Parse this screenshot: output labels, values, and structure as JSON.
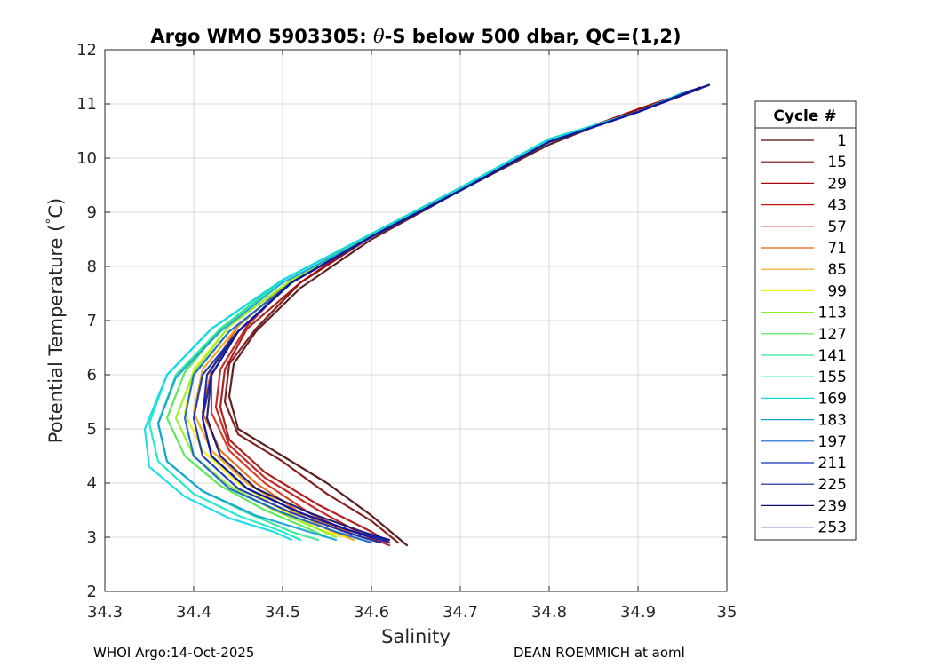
{
  "chart_data": {
    "type": "line",
    "title_prefix": "Argo WMO 5903305: ",
    "title_theta": "θ",
    "title_suffix": "-S below 500 dbar,  QC=(1,2)",
    "xlabel": "Salinity",
    "ylabel_main": "Potential Temperature (",
    "ylabel_deg": "°",
    "ylabel_end": "C)",
    "xlim": [
      34.3,
      35
    ],
    "ylim": [
      2,
      12
    ],
    "x_ticks": [
      34.3,
      34.4,
      34.5,
      34.6,
      34.7,
      34.8,
      34.9,
      35
    ],
    "x_tick_labels": [
      "34.3",
      "34.4",
      "34.5",
      "34.6",
      "34.7",
      "34.8",
      "34.9",
      "35"
    ],
    "y_ticks": [
      2,
      3,
      4,
      5,
      6,
      7,
      8,
      9,
      10,
      11,
      12
    ],
    "y_tick_labels": [
      "2",
      "3",
      "4",
      "5",
      "6",
      "7",
      "8",
      "9",
      "10",
      "11",
      "12"
    ],
    "grid": true,
    "legend": {
      "title": "Cycle #",
      "position": "right-outside",
      "entries": [
        {
          "label": "1",
          "color": "#4d0a0a"
        },
        {
          "label": "15",
          "color": "#7a0a0a"
        },
        {
          "label": "29",
          "color": "#a50a0a"
        },
        {
          "label": "43",
          "color": "#c01515"
        },
        {
          "label": "57",
          "color": "#d22a12"
        },
        {
          "label": "71",
          "color": "#e06010"
        },
        {
          "label": "85",
          "color": "#f0a010"
        },
        {
          "label": "99",
          "color": "#f5f010"
        },
        {
          "label": "113",
          "color": "#90ef20"
        },
        {
          "label": "127",
          "color": "#4ae84a"
        },
        {
          "label": "141",
          "color": "#2ae890"
        },
        {
          "label": "155",
          "color": "#10e8c0"
        },
        {
          "label": "169",
          "color": "#10d8e8"
        },
        {
          "label": "183",
          "color": "#10a0d8"
        },
        {
          "label": "197",
          "color": "#1060c8"
        },
        {
          "label": "211",
          "color": "#1030b0"
        },
        {
          "label": "225",
          "color": "#101890"
        },
        {
          "label": "239",
          "color": "#10106a"
        },
        {
          "label": "253",
          "color": "#0a1aa8"
        }
      ]
    },
    "series": [
      {
        "name": "1",
        "x": [
          34.98,
          34.9,
          34.8,
          34.7,
          34.6,
          34.52,
          34.47,
          34.445,
          34.44,
          34.45,
          34.5,
          34.55,
          34.6,
          34.64
        ],
        "y": [
          11.35,
          10.9,
          10.25,
          9.4,
          8.5,
          7.6,
          6.8,
          6.2,
          5.6,
          5.0,
          4.5,
          4.0,
          3.4,
          2.85
        ]
      },
      {
        "name": "15",
        "x": [
          34.97,
          34.9,
          34.8,
          34.7,
          34.6,
          34.52,
          34.47,
          34.44,
          34.435,
          34.45,
          34.5,
          34.55,
          34.6,
          34.63
        ],
        "y": [
          11.3,
          10.9,
          10.3,
          9.45,
          8.55,
          7.7,
          6.85,
          6.2,
          5.5,
          4.9,
          4.4,
          3.8,
          3.3,
          2.9
        ]
      },
      {
        "name": "29",
        "x": [
          34.97,
          34.9,
          34.8,
          34.7,
          34.6,
          34.52,
          34.46,
          34.435,
          34.43,
          34.44,
          34.48,
          34.54,
          34.6,
          34.62
        ],
        "y": [
          11.3,
          10.9,
          10.3,
          9.45,
          8.6,
          7.7,
          6.85,
          6.1,
          5.4,
          4.8,
          4.2,
          3.6,
          3.1,
          2.9
        ]
      },
      {
        "name": "43",
        "x": [
          34.97,
          34.9,
          34.8,
          34.7,
          34.6,
          34.51,
          34.46,
          34.43,
          34.425,
          34.44,
          34.48,
          34.54,
          34.59,
          34.62
        ],
        "y": [
          11.28,
          10.85,
          10.3,
          9.45,
          8.6,
          7.75,
          6.9,
          6.1,
          5.4,
          4.7,
          4.1,
          3.5,
          3.05,
          2.85
        ]
      },
      {
        "name": "57",
        "x": [
          34.96,
          34.9,
          34.8,
          34.7,
          34.6,
          34.51,
          34.45,
          34.42,
          34.42,
          34.44,
          34.48,
          34.53,
          34.58,
          34.61
        ],
        "y": [
          11.25,
          10.85,
          10.3,
          9.45,
          8.6,
          7.75,
          6.9,
          6.1,
          5.3,
          4.6,
          4.0,
          3.45,
          3.05,
          2.9
        ]
      },
      {
        "name": "71",
        "x": [
          34.96,
          34.9,
          34.8,
          34.7,
          34.6,
          34.51,
          34.45,
          34.42,
          34.41,
          34.43,
          34.47,
          34.52,
          34.57,
          34.6
        ],
        "y": [
          11.25,
          10.85,
          10.3,
          9.45,
          8.6,
          7.75,
          6.9,
          6.1,
          5.3,
          4.6,
          4.0,
          3.45,
          3.1,
          2.95
        ]
      },
      {
        "name": "85",
        "x": [
          34.95,
          34.9,
          34.8,
          34.7,
          34.6,
          34.51,
          34.45,
          34.41,
          34.4,
          34.42,
          34.46,
          34.51,
          34.55,
          34.58
        ],
        "y": [
          11.2,
          10.85,
          10.3,
          9.45,
          8.6,
          7.75,
          6.9,
          6.1,
          5.3,
          4.6,
          4.0,
          3.5,
          3.15,
          2.95
        ]
      },
      {
        "name": "99",
        "x": [
          34.95,
          34.9,
          34.8,
          34.7,
          34.6,
          34.51,
          34.44,
          34.4,
          34.39,
          34.41,
          34.45,
          34.5,
          34.54,
          34.57
        ],
        "y": [
          11.2,
          10.85,
          10.35,
          9.45,
          8.6,
          7.75,
          6.9,
          6.1,
          5.3,
          4.6,
          4.0,
          3.5,
          3.15,
          3.0
        ]
      },
      {
        "name": "113",
        "x": [
          34.95,
          34.9,
          34.8,
          34.7,
          34.6,
          34.51,
          34.44,
          34.4,
          34.38,
          34.4,
          34.44,
          34.49,
          34.54,
          34.56
        ],
        "y": [
          11.2,
          10.85,
          10.35,
          9.45,
          8.6,
          7.75,
          6.9,
          6.05,
          5.2,
          4.5,
          3.95,
          3.5,
          3.15,
          3.0
        ]
      },
      {
        "name": "127",
        "x": [
          34.95,
          34.9,
          34.8,
          34.7,
          34.6,
          34.5,
          34.43,
          34.39,
          34.37,
          34.39,
          34.43,
          34.48,
          34.53,
          34.55
        ],
        "y": [
          11.2,
          10.85,
          10.35,
          9.45,
          8.6,
          7.75,
          6.85,
          6.05,
          5.2,
          4.5,
          3.95,
          3.5,
          3.15,
          3.0
        ]
      },
      {
        "name": "141",
        "x": [
          34.95,
          34.9,
          34.8,
          34.7,
          34.6,
          34.5,
          34.43,
          34.38,
          34.36,
          34.37,
          34.41,
          34.46,
          34.51,
          34.54
        ],
        "y": [
          11.2,
          10.85,
          10.35,
          9.45,
          8.6,
          7.75,
          6.85,
          6.0,
          5.1,
          4.4,
          3.85,
          3.45,
          3.1,
          2.95
        ]
      },
      {
        "name": "155",
        "x": [
          34.95,
          34.9,
          34.8,
          34.7,
          34.6,
          34.5,
          34.42,
          34.37,
          34.35,
          34.36,
          34.4,
          34.45,
          34.5,
          34.52
        ],
        "y": [
          11.2,
          10.85,
          10.35,
          9.45,
          8.6,
          7.75,
          6.85,
          6.0,
          5.1,
          4.4,
          3.8,
          3.4,
          3.1,
          2.95
        ]
      },
      {
        "name": "169",
        "x": [
          34.95,
          34.9,
          34.8,
          34.7,
          34.6,
          34.5,
          34.42,
          34.37,
          34.345,
          34.35,
          34.39,
          34.44,
          34.49,
          34.51
        ],
        "y": [
          11.2,
          10.85,
          10.35,
          9.45,
          8.6,
          7.75,
          6.85,
          6.0,
          5.0,
          4.3,
          3.75,
          3.35,
          3.1,
          2.95
        ]
      },
      {
        "name": "183",
        "x": [
          34.96,
          34.9,
          34.8,
          34.7,
          34.6,
          34.5,
          34.43,
          34.38,
          34.36,
          34.37,
          34.41,
          34.47,
          34.53,
          34.56
        ],
        "y": [
          11.25,
          10.85,
          10.3,
          9.4,
          8.55,
          7.7,
          6.8,
          5.95,
          5.1,
          4.4,
          3.85,
          3.4,
          3.1,
          2.95
        ]
      },
      {
        "name": "197",
        "x": [
          34.96,
          34.9,
          34.8,
          34.7,
          34.6,
          34.51,
          34.44,
          34.4,
          34.39,
          34.4,
          34.44,
          34.5,
          34.56,
          34.6
        ],
        "y": [
          11.25,
          10.85,
          10.3,
          9.4,
          8.55,
          7.7,
          6.8,
          6.0,
          5.2,
          4.5,
          3.9,
          3.45,
          3.1,
          2.9
        ]
      },
      {
        "name": "211",
        "x": [
          34.97,
          34.9,
          34.8,
          34.7,
          34.6,
          34.51,
          34.45,
          34.41,
          34.4,
          34.41,
          34.45,
          34.51,
          34.57,
          34.61
        ],
        "y": [
          11.3,
          10.85,
          10.3,
          9.4,
          8.55,
          7.7,
          6.8,
          6.0,
          5.2,
          4.5,
          3.9,
          3.45,
          3.1,
          2.9
        ]
      },
      {
        "name": "225",
        "x": [
          34.97,
          34.9,
          34.8,
          34.7,
          34.6,
          34.51,
          34.45,
          34.415,
          34.41,
          34.42,
          34.46,
          34.52,
          34.58,
          34.62
        ],
        "y": [
          11.3,
          10.85,
          10.3,
          9.4,
          8.55,
          7.7,
          6.8,
          6.0,
          5.2,
          4.5,
          3.9,
          3.45,
          3.1,
          2.9
        ]
      },
      {
        "name": "239",
        "x": [
          34.97,
          34.9,
          34.8,
          34.7,
          34.6,
          34.51,
          34.45,
          34.42,
          34.415,
          34.43,
          34.47,
          34.53,
          34.59,
          34.62
        ],
        "y": [
          11.3,
          10.85,
          10.3,
          9.4,
          8.55,
          7.7,
          6.8,
          6.0,
          5.2,
          4.5,
          3.9,
          3.45,
          3.1,
          2.95
        ]
      },
      {
        "name": "253",
        "x": [
          34.98,
          34.9,
          34.8,
          34.7,
          34.6,
          34.51,
          34.45,
          34.42,
          34.41,
          34.42,
          34.46,
          34.52,
          34.58,
          34.62
        ],
        "y": [
          11.35,
          10.85,
          10.3,
          9.4,
          8.55,
          7.7,
          6.8,
          6.0,
          5.2,
          4.5,
          3.9,
          3.45,
          3.1,
          2.95
        ]
      }
    ]
  },
  "footer": {
    "left": "WHOI Argo:14-Oct-2025",
    "right": "DEAN ROEMMICH at aoml"
  }
}
